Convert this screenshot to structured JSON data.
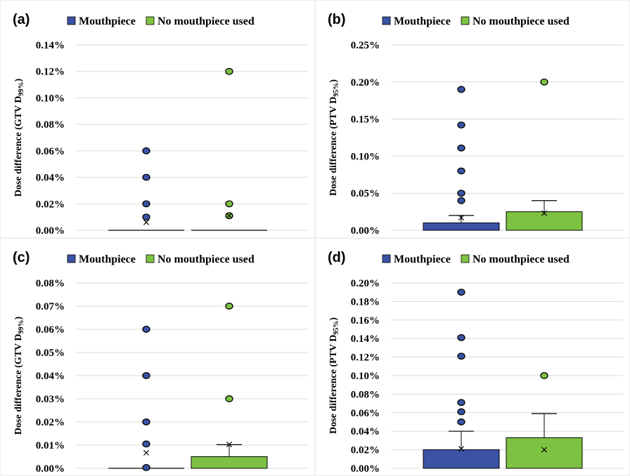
{
  "colors": {
    "mouthpiece": "#3A53A4",
    "no_mouthpiece": "#7DC242",
    "grid": "#d9d9d9",
    "outline": "#000000"
  },
  "legend": [
    "Mouthpiece",
    "No mouthpiece used"
  ],
  "chart_data": [
    {
      "panel": "(a)",
      "type": "box",
      "ylabel": "Dose difference (GTV D99%)",
      "ylabel_main": "Dose difference (GTV D",
      "ylabel_sub": "99%",
      "ylabel_end": ")",
      "ylim": [
        0,
        0.14
      ],
      "yticks": [
        0,
        0.02,
        0.04,
        0.06,
        0.08,
        0.1,
        0.12,
        0.14
      ],
      "ytick_labels": [
        "0.00%",
        "0.02%",
        "0.04%",
        "0.06%",
        "0.08%",
        "0.10%",
        "0.12%",
        "0.14%"
      ],
      "grid": true,
      "legend_position": "top",
      "series": [
        {
          "name": "Mouthpiece",
          "box_low": 0,
          "box_high": 0,
          "whisker_high": 0,
          "mean": 0.006,
          "outliers": [
            0.06,
            0.04,
            0.02,
            0.01
          ]
        },
        {
          "name": "No mouthpiece used",
          "box_low": 0,
          "box_high": 0,
          "whisker_high": 0,
          "mean": 0.011,
          "outliers": [
            0.12,
            0.02,
            0.011
          ]
        }
      ]
    },
    {
      "panel": "(b)",
      "type": "box",
      "ylabel": "Dose difference (PTV D95%)",
      "ylabel_main": "Dose difference (PTV D",
      "ylabel_sub": "95%",
      "ylabel_end": ")",
      "ylim": [
        0,
        0.25
      ],
      "yticks": [
        0,
        0.05,
        0.1,
        0.15,
        0.2,
        0.25
      ],
      "ytick_labels": [
        "0.00%",
        "0.05%",
        "0.10%",
        "0.15%",
        "0.20%",
        "0.25%"
      ],
      "grid": true,
      "legend_position": "top",
      "series": [
        {
          "name": "Mouthpiece",
          "box_low": 0,
          "box_high": 0.01,
          "whisker_high": 0.02,
          "mean": 0.017,
          "outliers": [
            0.19,
            0.142,
            0.111,
            0.08,
            0.05,
            0.04
          ]
        },
        {
          "name": "No mouthpiece used",
          "box_low": 0,
          "box_high": 0.025,
          "whisker_high": 0.04,
          "mean": 0.023,
          "outliers": [
            0.2
          ]
        }
      ]
    },
    {
      "panel": "(c)",
      "type": "box",
      "ylabel": "Dose difference (GTV D99%)",
      "ylabel_main": "Dose difference (GTV D",
      "ylabel_sub": "99%",
      "ylabel_end": ")",
      "ylim": [
        0,
        0.08
      ],
      "yticks": [
        0,
        0.01,
        0.02,
        0.03,
        0.04,
        0.05,
        0.06,
        0.07,
        0.08
      ],
      "ytick_labels": [
        "0.00%",
        "0.01%",
        "0.02%",
        "0.03%",
        "0.04%",
        "0.05%",
        "0.06%",
        "0.07%",
        "0.08%"
      ],
      "grid": true,
      "legend_position": "top",
      "series": [
        {
          "name": "Mouthpiece",
          "box_low": 0,
          "box_high": 0,
          "whisker_high": 0,
          "mean": 0.0067,
          "outliers": [
            0.06,
            0.04,
            0.02,
            0.0105,
            0.0003
          ]
        },
        {
          "name": "No mouthpiece used",
          "box_low": 0,
          "box_high": 0.005,
          "whisker_high": 0.0102,
          "mean": 0.0103,
          "outliers": [
            0.07,
            0.03
          ]
        }
      ]
    },
    {
      "panel": "(d)",
      "type": "box",
      "ylabel": "Dose difference (PTV D95%)",
      "ylabel_main": "Dose difference (PTV D",
      "ylabel_sub": "95%",
      "ylabel_end": ")",
      "ylim": [
        0,
        0.2
      ],
      "yticks": [
        0,
        0.02,
        0.04,
        0.06,
        0.08,
        0.1,
        0.12,
        0.14,
        0.16,
        0.18,
        0.2
      ],
      "ytick_labels": [
        "0.00%",
        "0.02%",
        "0.04%",
        "0.06%",
        "0.08%",
        "0.10%",
        "0.12%",
        "0.14%",
        "0.16%",
        "0.18%",
        "0.20%"
      ],
      "grid": true,
      "legend_position": "top",
      "series": [
        {
          "name": "Mouthpiece",
          "box_low": 0,
          "box_high": 0.02,
          "whisker_high": 0.04,
          "mean": 0.021,
          "outliers": [
            0.19,
            0.141,
            0.121,
            0.071,
            0.061,
            0.05
          ]
        },
        {
          "name": "No mouthpiece used",
          "box_low": 0,
          "box_high": 0.033,
          "whisker_high": 0.059,
          "mean": 0.02,
          "outliers": [
            0.1
          ]
        }
      ]
    }
  ]
}
